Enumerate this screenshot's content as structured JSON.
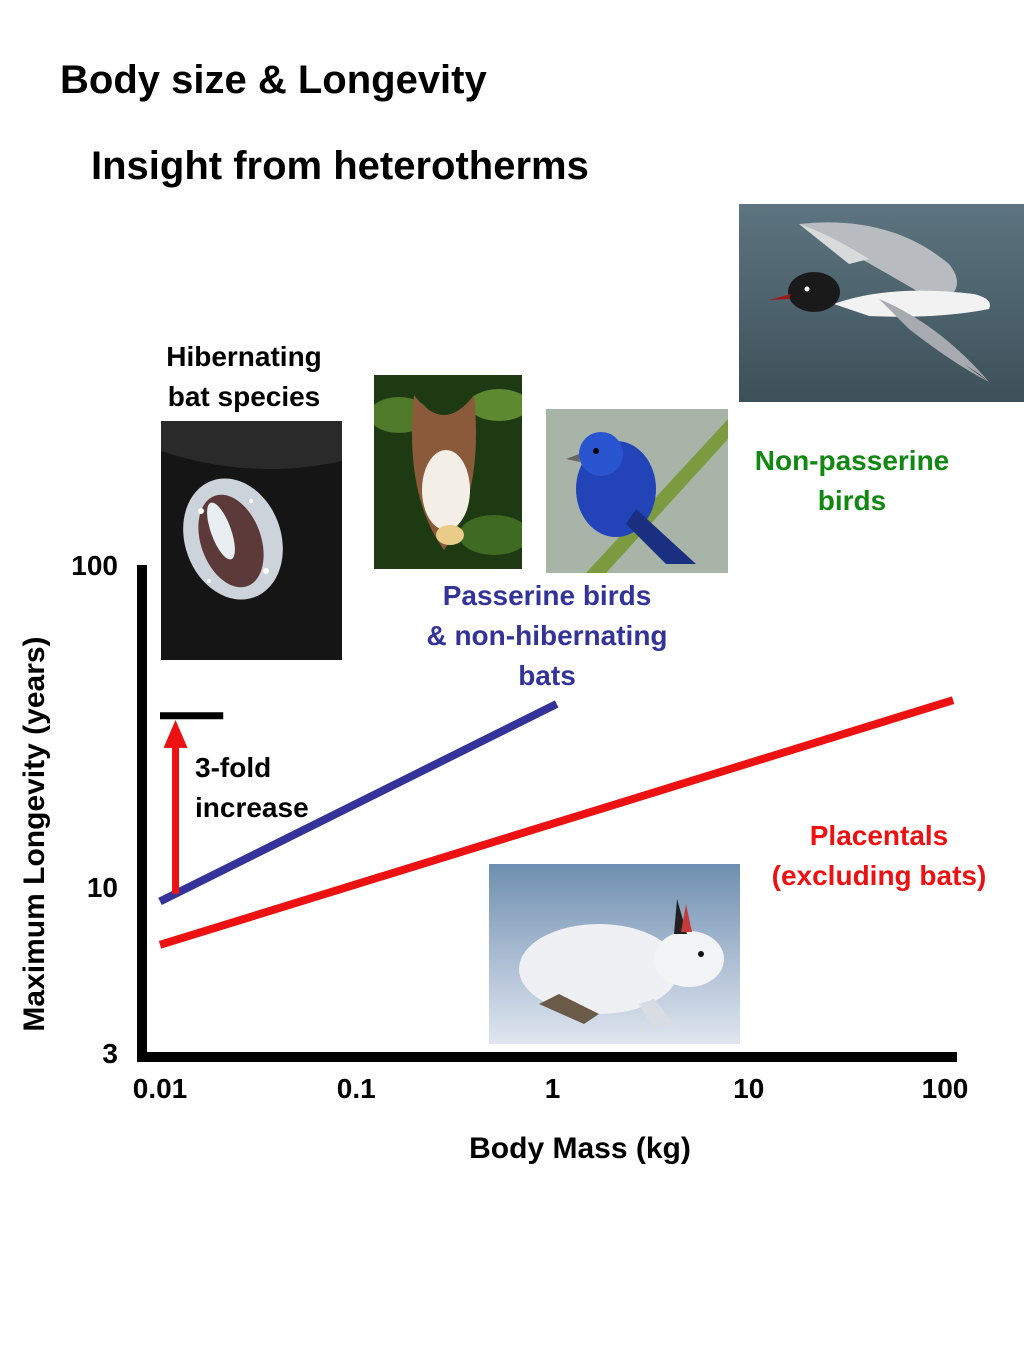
{
  "header": {
    "title": "Body size & Longevity",
    "subtitle": "Insight from heterotherms"
  },
  "labels": {
    "hibernating_line1": "Hibernating",
    "hibernating_line2": "bat species",
    "nonpasserine_line1": "Non-passerine",
    "nonpasserine_line2": "birds",
    "passerine_line1": "Passerine birds",
    "passerine_line2": "& non-hibernating",
    "passerine_line3": "bats",
    "fold_line1": "3-fold",
    "fold_line2": "increase",
    "placentals_line1": "Placentals",
    "placentals_line2": "(excluding bats)"
  },
  "colors": {
    "placentals": "#ee1111",
    "passerine": "#333399",
    "nonpasserine": "#118811",
    "arrow": "#ee1111",
    "axis": "#000000"
  },
  "photos": [
    {
      "name": "hibernating-bat-photo",
      "subject": "hibernating bat"
    },
    {
      "name": "fruit-bat-photo",
      "subject": "fruit bat"
    },
    {
      "name": "indigo-bunting-photo",
      "subject": "blue songbird"
    },
    {
      "name": "gull-photo",
      "subject": "gull in flight"
    },
    {
      "name": "hare-photo",
      "subject": "white hare"
    }
  ],
  "chart_data": {
    "type": "line",
    "x_scale": "log",
    "y_scale": "log",
    "xlabel": "Body  Mass (kg)",
    "ylabel": "Maximum  Longevity (years)",
    "x_ticks": [
      {
        "value": 0.01,
        "label": "0.01"
      },
      {
        "value": 0.1,
        "label": "0.1"
      },
      {
        "value": 1,
        "label": "1"
      },
      {
        "value": 10,
        "label": "10"
      },
      {
        "value": 100,
        "label": "100"
      }
    ],
    "y_ticks": [
      {
        "value": 3,
        "label": "3"
      },
      {
        "value": 10,
        "label": "10"
      },
      {
        "value": 100,
        "label": "100"
      }
    ],
    "xlim": [
      0.01,
      100
    ],
    "ylim": [
      3,
      100
    ],
    "series": [
      {
        "name": "Passerine birds & non-hibernating bats",
        "color": "#333399",
        "x": [
          0.01,
          1.05
        ],
        "y": [
          9.0,
          37.0
        ]
      },
      {
        "name": "Placentals (excluding bats)",
        "color": "#ee1111",
        "x": [
          0.01,
          110
        ],
        "y": [
          6.6,
          38.0
        ]
      }
    ],
    "annotations": [
      {
        "type": "arrow",
        "text": "3-fold increase",
        "x": 0.012,
        "y_from": 9.5,
        "y_to": 33
      },
      {
        "type": "level-bar",
        "text": "Hibernating bat species",
        "x_from": 0.01,
        "x_to": 0.021,
        "y": 34
      }
    ]
  }
}
